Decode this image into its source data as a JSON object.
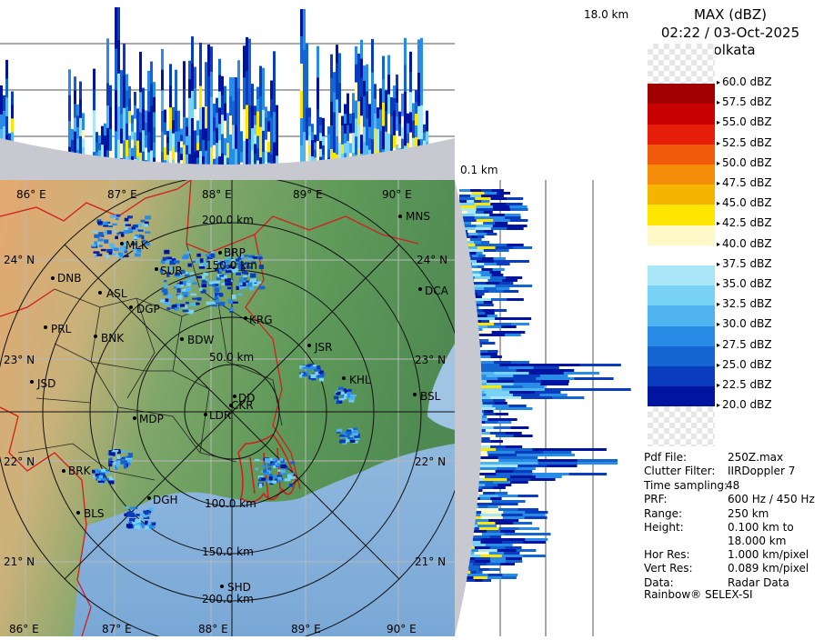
{
  "header": {
    "product": "MAX (dBZ)",
    "datetime": "02:22 / 03-Oct-2025",
    "station": "Kolkata"
  },
  "top_panel": {
    "height_max_label": "18.0 km"
  },
  "side_panel": {
    "height_min_label": "0.1 km"
  },
  "legend": {
    "levels": [
      {
        "label": "60.0 dBZ",
        "color": "#f0f0f0"
      },
      {
        "label": "57.5 dBZ",
        "color": "#a00000"
      },
      {
        "label": "55.0 dBZ",
        "color": "#c80000"
      },
      {
        "label": "52.5 dBZ",
        "color": "#e61e0a"
      },
      {
        "label": "50.0 dBZ",
        "color": "#f05a0a"
      },
      {
        "label": "47.5 dBZ",
        "color": "#f58c0a"
      },
      {
        "label": "45.0 dBZ",
        "color": "#f5b400"
      },
      {
        "label": "42.5 dBZ",
        "color": "#ffe600"
      },
      {
        "label": "40.0 dBZ",
        "color": "#fff8c8"
      },
      {
        "label": "37.5 dBZ",
        "color": "#ffffff"
      },
      {
        "label": "35.0 dBZ",
        "color": "#a8e6f8"
      },
      {
        "label": "32.5 dBZ",
        "color": "#78d2f5"
      },
      {
        "label": "30.0 dBZ",
        "color": "#50b4f0"
      },
      {
        "label": "27.5 dBZ",
        "color": "#288ce6"
      },
      {
        "label": "25.0 dBZ",
        "color": "#1464d2"
      },
      {
        "label": "22.5 dBZ",
        "color": "#0a3cbe"
      },
      {
        "label": "20.0 dBZ",
        "color": "#0014a0"
      }
    ]
  },
  "info": [
    {
      "key": "Pdf File:",
      "value": "250Z.max"
    },
    {
      "key": "Clutter Filter:",
      "value": "IIRDoppler 7"
    },
    {
      "key": "Time sampling:",
      "value": "48"
    },
    {
      "key": "PRF:",
      "value": "600 Hz / 450 Hz"
    },
    {
      "key": "Range:",
      "value": "250 km"
    },
    {
      "key": "Height:",
      "value": "0.100 km to"
    },
    {
      "key": "",
      "value": "18.000 km"
    },
    {
      "key": "Hor Res:",
      "value": "1.000 km/pixel"
    },
    {
      "key": "Vert Res:",
      "value": "0.089 km/pixel"
    },
    {
      "key": "Data:",
      "value": "Radar Data"
    }
  ],
  "footer": {
    "brand": "Rainbow® SELEX-SI"
  },
  "map": {
    "longitudes": [
      "86° E",
      "87° E",
      "88° E",
      "89° E",
      "90° E"
    ],
    "latitudes": [
      "24° N",
      "23° N",
      "22° N",
      "21° N"
    ],
    "rings": [
      "50.0 km",
      "100.0 km",
      "150.0 km",
      "200.0 km"
    ],
    "stations": [
      "MNS",
      "MLK",
      "BRP",
      "DNB",
      "ASL",
      "SUR",
      "DCA",
      "DGP",
      "PRL",
      "BNK",
      "KRG",
      "BDW",
      "JSR",
      "KHL",
      "JSD",
      "DD",
      "CKR",
      "BSL",
      "MDP",
      "LDR",
      "BRK",
      "DGH",
      "BLS",
      "SHD"
    ]
  }
}
